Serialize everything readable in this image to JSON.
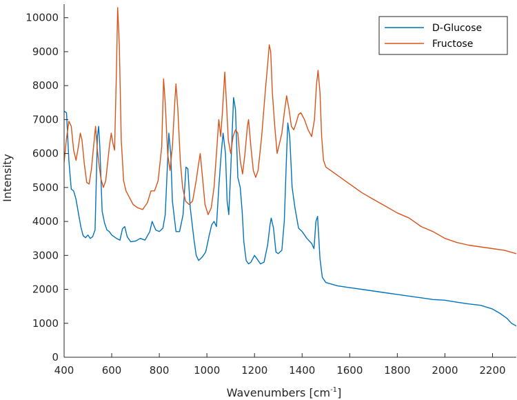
{
  "chart_data": {
    "type": "line",
    "xlabel": "Wavenumbers [cm",
    "xlabel_sup": "-1",
    "xlabel_end": "]",
    "ylabel": "Intensity",
    "xlim": [
      400,
      2300
    ],
    "ylim": [
      0,
      10400
    ],
    "xticks": [
      400,
      600,
      800,
      1000,
      1200,
      1400,
      1600,
      1800,
      2000,
      2200
    ],
    "yticks": [
      0,
      1000,
      2000,
      3000,
      4000,
      5000,
      6000,
      7000,
      8000,
      9000,
      10000
    ],
    "grid": false,
    "legend_position": "top-right",
    "series": [
      {
        "name": "D-Glucose",
        "color": "#0072BD",
        "points": [
          [
            400,
            7250
          ],
          [
            410,
            7200
          ],
          [
            420,
            5800
          ],
          [
            430,
            4950
          ],
          [
            440,
            4900
          ],
          [
            450,
            4650
          ],
          [
            460,
            4250
          ],
          [
            470,
            3850
          ],
          [
            480,
            3580
          ],
          [
            490,
            3520
          ],
          [
            500,
            3600
          ],
          [
            510,
            3500
          ],
          [
            520,
            3550
          ],
          [
            530,
            3750
          ],
          [
            540,
            6500
          ],
          [
            545,
            6800
          ],
          [
            550,
            6200
          ],
          [
            560,
            4300
          ],
          [
            570,
            3950
          ],
          [
            580,
            3750
          ],
          [
            590,
            3700
          ],
          [
            600,
            3600
          ],
          [
            620,
            3500
          ],
          [
            635,
            3450
          ],
          [
            645,
            3780
          ],
          [
            655,
            3850
          ],
          [
            665,
            3550
          ],
          [
            680,
            3400
          ],
          [
            700,
            3420
          ],
          [
            720,
            3500
          ],
          [
            740,
            3450
          ],
          [
            760,
            3700
          ],
          [
            770,
            4000
          ],
          [
            785,
            3750
          ],
          [
            800,
            3700
          ],
          [
            815,
            3800
          ],
          [
            825,
            4200
          ],
          [
            835,
            5800
          ],
          [
            840,
            6600
          ],
          [
            848,
            6000
          ],
          [
            855,
            4600
          ],
          [
            870,
            3700
          ],
          [
            885,
            3700
          ],
          [
            900,
            4200
          ],
          [
            912,
            5600
          ],
          [
            920,
            5550
          ],
          [
            930,
            4400
          ],
          [
            945,
            3500
          ],
          [
            955,
            3000
          ],
          [
            965,
            2850
          ],
          [
            980,
            2950
          ],
          [
            995,
            3100
          ],
          [
            1010,
            3600
          ],
          [
            1020,
            3900
          ],
          [
            1030,
            4000
          ],
          [
            1040,
            3850
          ],
          [
            1050,
            5000
          ],
          [
            1060,
            6000
          ],
          [
            1068,
            6600
          ],
          [
            1078,
            6000
          ],
          [
            1085,
            4600
          ],
          [
            1092,
            4200
          ],
          [
            1100,
            5500
          ],
          [
            1112,
            7650
          ],
          [
            1120,
            7300
          ],
          [
            1130,
            5300
          ],
          [
            1140,
            5000
          ],
          [
            1148,
            4300
          ],
          [
            1155,
            3400
          ],
          [
            1165,
            2850
          ],
          [
            1175,
            2750
          ],
          [
            1185,
            2800
          ],
          [
            1200,
            3000
          ],
          [
            1210,
            2900
          ],
          [
            1225,
            2750
          ],
          [
            1240,
            2800
          ],
          [
            1255,
            3300
          ],
          [
            1265,
            3900
          ],
          [
            1270,
            4100
          ],
          [
            1280,
            3800
          ],
          [
            1290,
            3100
          ],
          [
            1300,
            3050
          ],
          [
            1315,
            3150
          ],
          [
            1325,
            4000
          ],
          [
            1335,
            6000
          ],
          [
            1340,
            6900
          ],
          [
            1348,
            6500
          ],
          [
            1358,
            5000
          ],
          [
            1370,
            4400
          ],
          [
            1385,
            3800
          ],
          [
            1400,
            3700
          ],
          [
            1420,
            3500
          ],
          [
            1440,
            3350
          ],
          [
            1450,
            3200
          ],
          [
            1458,
            4000
          ],
          [
            1465,
            4150
          ],
          [
            1475,
            2900
          ],
          [
            1485,
            2350
          ],
          [
            1500,
            2200
          ],
          [
            1550,
            2100
          ],
          [
            1600,
            2050
          ],
          [
            1650,
            2000
          ],
          [
            1700,
            1950
          ],
          [
            1750,
            1900
          ],
          [
            1800,
            1850
          ],
          [
            1850,
            1800
          ],
          [
            1900,
            1750
          ],
          [
            1950,
            1700
          ],
          [
            2000,
            1680
          ],
          [
            2050,
            1620
          ],
          [
            2100,
            1570
          ],
          [
            2150,
            1530
          ],
          [
            2200,
            1420
          ],
          [
            2230,
            1300
          ],
          [
            2260,
            1150
          ],
          [
            2280,
            1000
          ],
          [
            2300,
            920
          ]
        ]
      },
      {
        "name": "Fructose",
        "color": "#D95319",
        "points": [
          [
            400,
            5750
          ],
          [
            410,
            6450
          ],
          [
            420,
            6950
          ],
          [
            430,
            6800
          ],
          [
            440,
            6100
          ],
          [
            450,
            5800
          ],
          [
            460,
            6200
          ],
          [
            468,
            6600
          ],
          [
            475,
            6400
          ],
          [
            485,
            5700
          ],
          [
            495,
            5150
          ],
          [
            505,
            5100
          ],
          [
            515,
            5550
          ],
          [
            525,
            6300
          ],
          [
            532,
            6800
          ],
          [
            540,
            6100
          ],
          [
            548,
            5600
          ],
          [
            555,
            5250
          ],
          [
            565,
            5000
          ],
          [
            575,
            5200
          ],
          [
            590,
            6200
          ],
          [
            598,
            6600
          ],
          [
            605,
            6300
          ],
          [
            612,
            6100
          ],
          [
            620,
            8500
          ],
          [
            625,
            10300
          ],
          [
            632,
            9200
          ],
          [
            640,
            6400
          ],
          [
            650,
            5200
          ],
          [
            660,
            4900
          ],
          [
            675,
            4700
          ],
          [
            690,
            4500
          ],
          [
            710,
            4400
          ],
          [
            730,
            4350
          ],
          [
            750,
            4550
          ],
          [
            765,
            4900
          ],
          [
            780,
            4900
          ],
          [
            795,
            5200
          ],
          [
            810,
            6200
          ],
          [
            818,
            8200
          ],
          [
            825,
            7500
          ],
          [
            835,
            6000
          ],
          [
            845,
            5500
          ],
          [
            855,
            6200
          ],
          [
            865,
            7500
          ],
          [
            870,
            8050
          ],
          [
            878,
            7300
          ],
          [
            888,
            5800
          ],
          [
            898,
            5000
          ],
          [
            910,
            4600
          ],
          [
            925,
            4500
          ],
          [
            940,
            4600
          ],
          [
            955,
            5200
          ],
          [
            965,
            5700
          ],
          [
            972,
            6000
          ],
          [
            980,
            5400
          ],
          [
            992,
            4500
          ],
          [
            1005,
            4200
          ],
          [
            1018,
            4400
          ],
          [
            1030,
            5000
          ],
          [
            1042,
            6200
          ],
          [
            1050,
            7000
          ],
          [
            1058,
            6500
          ],
          [
            1065,
            7200
          ],
          [
            1075,
            8400
          ],
          [
            1082,
            7500
          ],
          [
            1090,
            6400
          ],
          [
            1100,
            6000
          ],
          [
            1110,
            6500
          ],
          [
            1120,
            6700
          ],
          [
            1130,
            6600
          ],
          [
            1140,
            5800
          ],
          [
            1150,
            5400
          ],
          [
            1160,
            6000
          ],
          [
            1170,
            6800
          ],
          [
            1175,
            7000
          ],
          [
            1185,
            6200
          ],
          [
            1195,
            5500
          ],
          [
            1205,
            5300
          ],
          [
            1215,
            5500
          ],
          [
            1230,
            6500
          ],
          [
            1245,
            7800
          ],
          [
            1255,
            8600
          ],
          [
            1262,
            9200
          ],
          [
            1268,
            9000
          ],
          [
            1275,
            7800
          ],
          [
            1285,
            6800
          ],
          [
            1295,
            6000
          ],
          [
            1305,
            6300
          ],
          [
            1315,
            6600
          ],
          [
            1325,
            7200
          ],
          [
            1335,
            7700
          ],
          [
            1345,
            7300
          ],
          [
            1355,
            6800
          ],
          [
            1365,
            6700
          ],
          [
            1375,
            6900
          ],
          [
            1385,
            7150
          ],
          [
            1395,
            7200
          ],
          [
            1410,
            7000
          ],
          [
            1425,
            6700
          ],
          [
            1440,
            6500
          ],
          [
            1452,
            7000
          ],
          [
            1460,
            8000
          ],
          [
            1467,
            8450
          ],
          [
            1475,
            7800
          ],
          [
            1482,
            6500
          ],
          [
            1490,
            5800
          ],
          [
            1500,
            5600
          ],
          [
            1550,
            5350
          ],
          [
            1600,
            5100
          ],
          [
            1650,
            4850
          ],
          [
            1700,
            4650
          ],
          [
            1750,
            4450
          ],
          [
            1800,
            4250
          ],
          [
            1850,
            4100
          ],
          [
            1900,
            3850
          ],
          [
            1950,
            3700
          ],
          [
            2000,
            3500
          ],
          [
            2050,
            3380
          ],
          [
            2100,
            3300
          ],
          [
            2150,
            3250
          ],
          [
            2200,
            3200
          ],
          [
            2250,
            3150
          ],
          [
            2300,
            3050
          ]
        ]
      }
    ]
  }
}
